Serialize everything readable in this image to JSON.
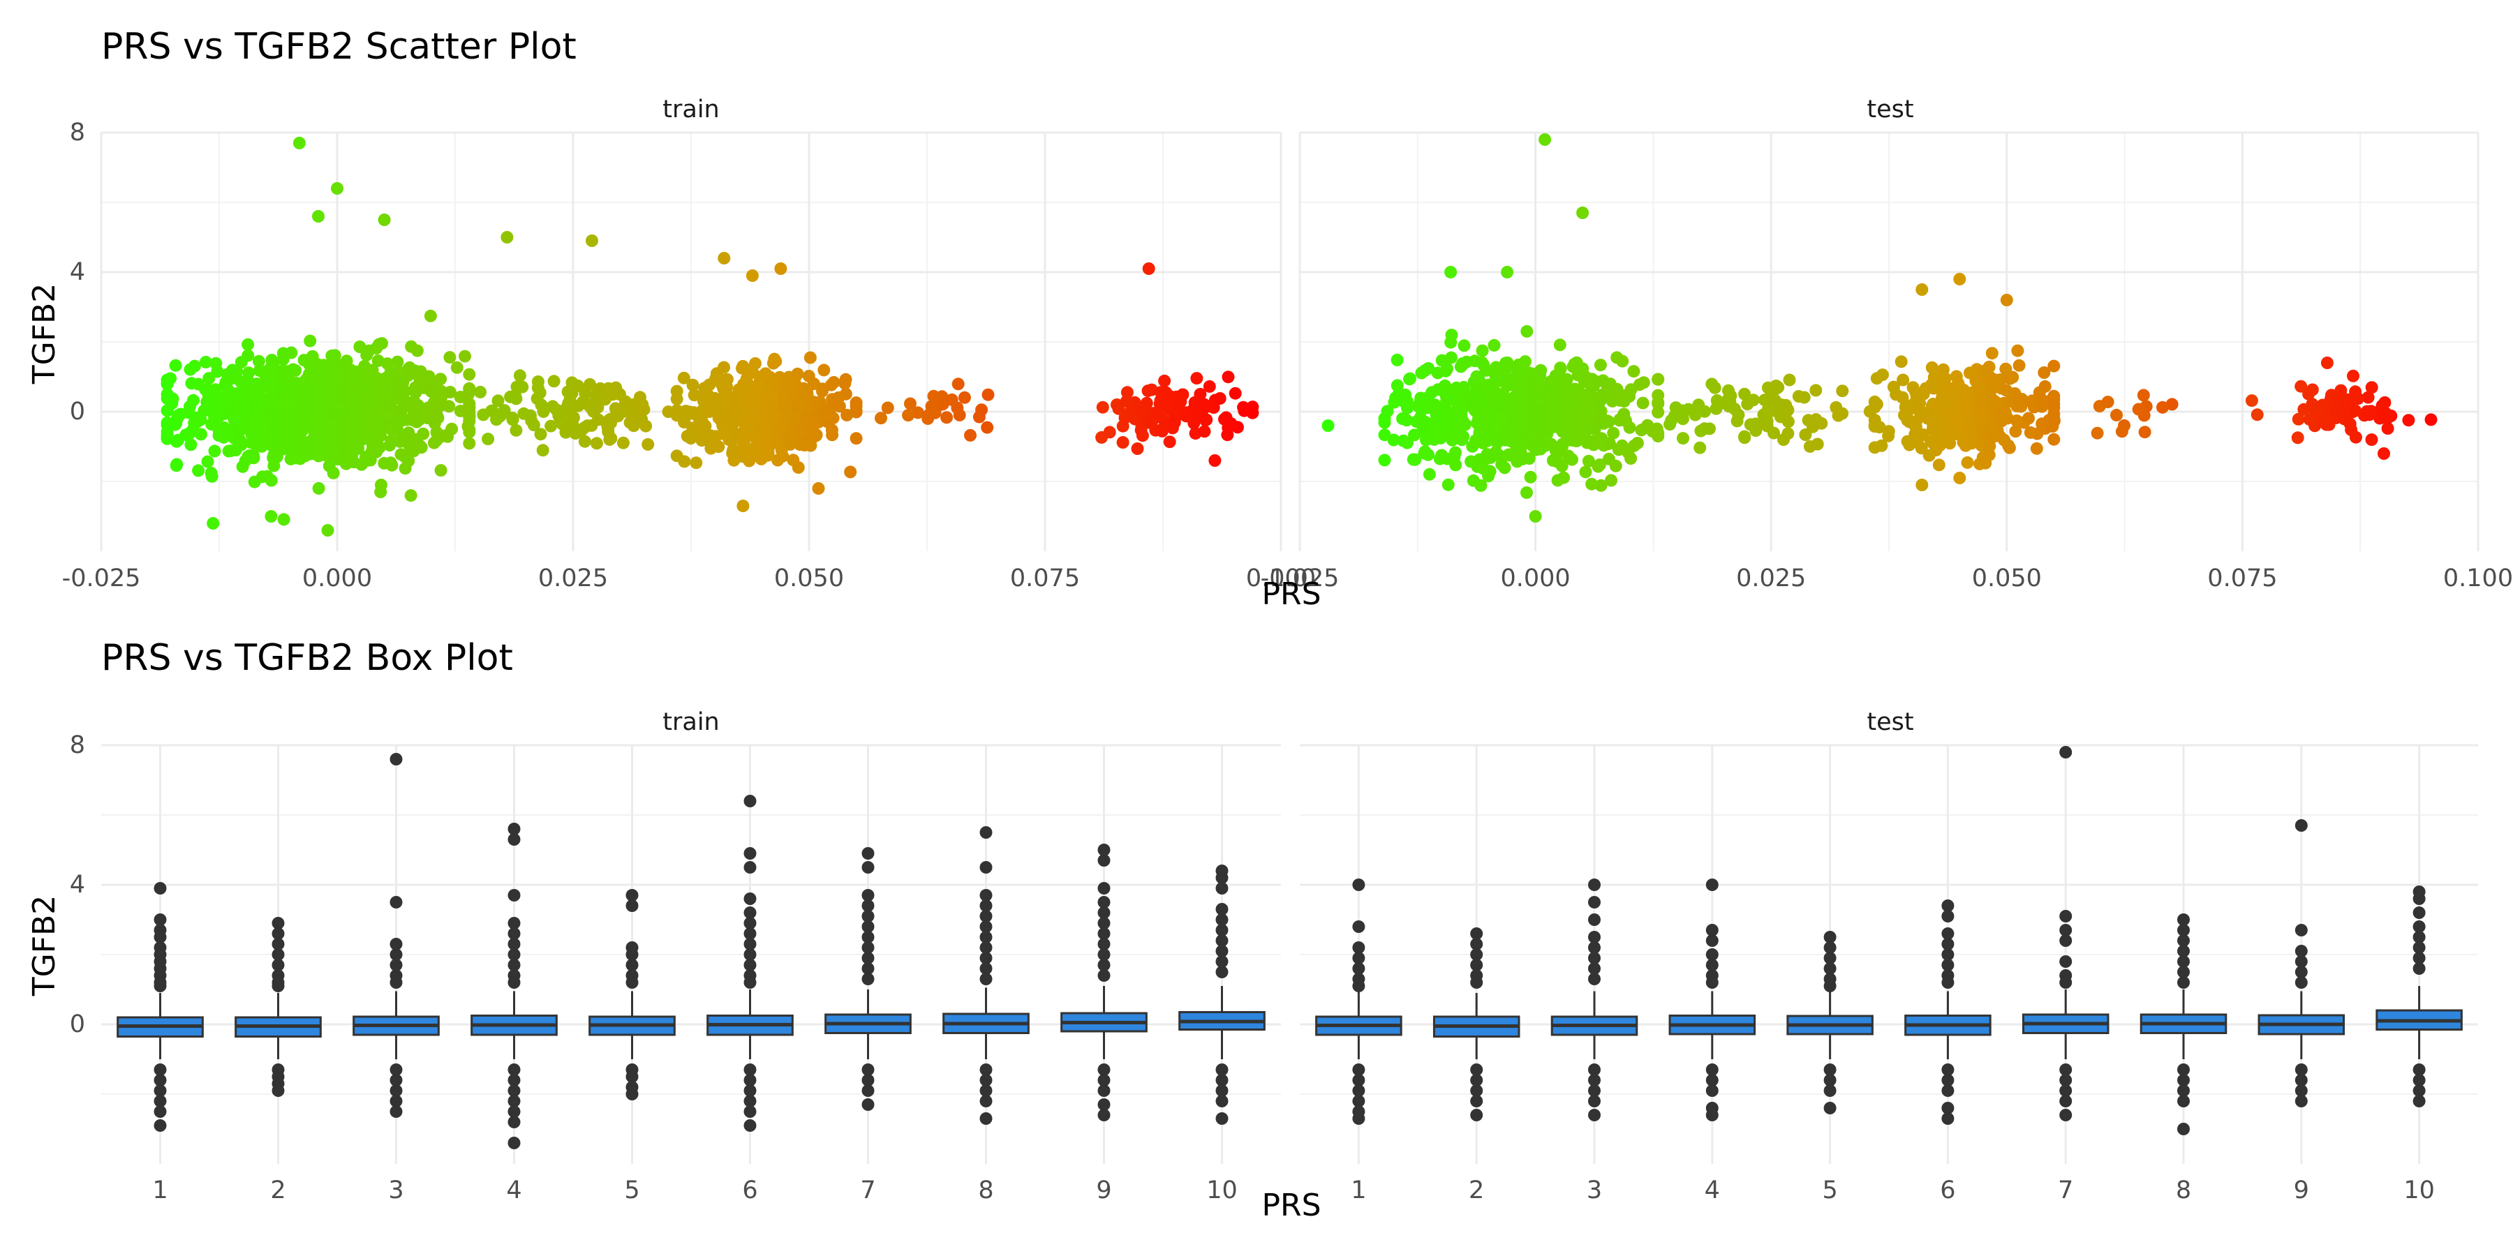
{
  "chart_data": [
    {
      "type": "scatter",
      "title": "PRS vs TGFB2 Scatter Plot",
      "xlabel": "PRS",
      "ylabel": "TGFB2",
      "xlim": [
        -0.025,
        0.1
      ],
      "ylim": [
        -4,
        8
      ],
      "x_ticks": [
        "-0.025",
        "0.000",
        "0.025",
        "0.050",
        "0.075",
        "0.100"
      ],
      "y_ticks": [
        "0",
        "4",
        "8"
      ],
      "y_tick_values": [
        0,
        4,
        8
      ],
      "grid": true,
      "legend": "none",
      "color_scale": {
        "low": "#33ff00",
        "mid": "#d49a00",
        "high": "#ff0000"
      },
      "facets": [
        {
          "label": "train",
          "clusters": [
            {
              "x_range": [
                -0.018,
                0.014
              ],
              "y_sd": 0.8,
              "n": 900
            },
            {
              "x_range": [
                0.014,
                0.037
              ],
              "y_sd": 0.5,
              "n": 120
            },
            {
              "x_range": [
                0.036,
                0.055
              ],
              "y_sd": 0.6,
              "n": 450
            },
            {
              "x_range": [
                0.055,
                0.072
              ],
              "y_sd": 0.3,
              "n": 25
            },
            {
              "x_range": [
                0.081,
                0.097
              ],
              "y_sd": 0.4,
              "n": 110
            }
          ],
          "notable_points": [
            {
              "x": -0.004,
              "y": 7.7
            },
            {
              "x": 0.0,
              "y": 6.4
            },
            {
              "x": -0.002,
              "y": 5.6
            },
            {
              "x": 0.005,
              "y": 5.5
            },
            {
              "x": 0.018,
              "y": 5.0
            },
            {
              "x": 0.027,
              "y": 4.9
            },
            {
              "x": 0.041,
              "y": 4.4
            },
            {
              "x": 0.044,
              "y": 3.9
            },
            {
              "x": 0.047,
              "y": 4.1
            },
            {
              "x": 0.086,
              "y": 4.1
            },
            {
              "x": -0.001,
              "y": -3.4
            },
            {
              "x": 0.043,
              "y": -2.7
            },
            {
              "x": 0.051,
              "y": -2.2
            },
            {
              "x": 0.093,
              "y": -1.4
            },
            {
              "x": -0.007,
              "y": -3.0
            }
          ]
        },
        {
          "label": "test",
          "clusters": [
            {
              "x_range": [
                -0.016,
                0.013
              ],
              "y_sd": 0.8,
              "n": 600
            },
            {
              "x_range": [
                0.012,
                0.036
              ],
              "y_sd": 0.5,
              "n": 80
            },
            {
              "x_range": [
                0.036,
                0.055
              ],
              "y_sd": 0.6,
              "n": 320
            },
            {
              "x_range": [
                0.055,
                0.072
              ],
              "y_sd": 0.3,
              "n": 14
            },
            {
              "x_range": [
                0.076,
                0.095
              ],
              "y_sd": 0.4,
              "n": 70
            }
          ],
          "notable_points": [
            {
              "x": 0.001,
              "y": 7.8
            },
            {
              "x": 0.005,
              "y": 5.7
            },
            {
              "x": -0.009,
              "y": 4.0
            },
            {
              "x": -0.003,
              "y": 4.0
            },
            {
              "x": 0.041,
              "y": 3.5
            },
            {
              "x": 0.045,
              "y": 3.8
            },
            {
              "x": 0.05,
              "y": 3.2
            },
            {
              "x": -0.022,
              "y": -0.4
            },
            {
              "x": 0.0,
              "y": -3.0
            },
            {
              "x": 0.041,
              "y": -2.1
            },
            {
              "x": 0.045,
              "y": -1.9
            },
            {
              "x": 0.09,
              "y": -1.2
            },
            {
              "x": 0.084,
              "y": 1.4
            }
          ]
        }
      ]
    },
    {
      "type": "box",
      "title": "PRS vs TGFB2 Box Plot",
      "xlabel": "PRS",
      "ylabel": "TGFB2",
      "ylim": [
        -4,
        8
      ],
      "y_ticks": [
        "0",
        "4",
        "8"
      ],
      "y_tick_values": [
        0,
        4,
        8
      ],
      "categories": [
        "1",
        "2",
        "3",
        "4",
        "5",
        "6",
        "7",
        "8",
        "9",
        "10"
      ],
      "grid": true,
      "box_fill": "#2e86de",
      "facets": [
        {
          "label": "train",
          "boxes": [
            {
              "q1": -0.35,
              "median": -0.05,
              "q3": 0.2,
              "whisker_low": -1.0,
              "whisker_high": 0.9,
              "outliers": [
                3.9,
                3.0,
                2.7,
                2.5,
                2.2,
                2.0,
                1.8,
                1.6,
                1.4,
                1.2,
                1.1,
                -1.3,
                -1.6,
                -1.9,
                -2.2,
                -2.5,
                -2.9
              ]
            },
            {
              "q1": -0.35,
              "median": -0.05,
              "q3": 0.2,
              "whisker_low": -1.0,
              "whisker_high": 0.9,
              "outliers": [
                2.9,
                2.6,
                2.3,
                2.0,
                1.7,
                1.4,
                1.2,
                1.1,
                -1.3,
                -1.5,
                -1.7,
                -1.9
              ]
            },
            {
              "q1": -0.3,
              "median": -0.03,
              "q3": 0.22,
              "whisker_low": -1.0,
              "whisker_high": 0.95,
              "outliers": [
                7.6,
                3.5,
                2.3,
                2.0,
                1.7,
                1.4,
                1.2,
                -1.3,
                -1.6,
                -1.9,
                -2.2,
                -2.5
              ]
            },
            {
              "q1": -0.3,
              "median": -0.02,
              "q3": 0.25,
              "whisker_low": -1.0,
              "whisker_high": 0.95,
              "outliers": [
                5.6,
                5.3,
                3.7,
                2.9,
                2.6,
                2.3,
                2.0,
                1.7,
                1.4,
                1.2,
                -1.3,
                -1.6,
                -1.9,
                -2.2,
                -2.5,
                -2.8,
                -3.4
              ]
            },
            {
              "q1": -0.3,
              "median": -0.02,
              "q3": 0.22,
              "whisker_low": -1.0,
              "whisker_high": 0.95,
              "outliers": [
                3.7,
                3.4,
                2.2,
                2.0,
                1.7,
                1.4,
                1.2,
                -1.3,
                -1.5,
                -1.8,
                -2.0
              ]
            },
            {
              "q1": -0.3,
              "median": -0.01,
              "q3": 0.25,
              "whisker_low": -1.0,
              "whisker_high": 1.0,
              "outliers": [
                6.4,
                4.9,
                4.5,
                3.6,
                3.2,
                2.9,
                2.6,
                2.3,
                2.0,
                1.7,
                1.4,
                1.2,
                -1.3,
                -1.6,
                -1.9,
                -2.2,
                -2.5,
                -2.9
              ]
            },
            {
              "q1": -0.25,
              "median": 0.02,
              "q3": 0.28,
              "whisker_low": -1.0,
              "whisker_high": 1.0,
              "outliers": [
                4.9,
                4.5,
                3.7,
                3.4,
                3.1,
                2.8,
                2.5,
                2.2,
                1.9,
                1.6,
                1.3,
                -1.3,
                -1.6,
                -1.9,
                -2.3
              ]
            },
            {
              "q1": -0.25,
              "median": 0.02,
              "q3": 0.3,
              "whisker_low": -1.0,
              "whisker_high": 1.05,
              "outliers": [
                5.5,
                4.5,
                3.7,
                3.4,
                3.1,
                2.8,
                2.5,
                2.2,
                1.9,
                1.6,
                1.3,
                -1.3,
                -1.6,
                -1.9,
                -2.2,
                -2.7
              ]
            },
            {
              "q1": -0.2,
              "median": 0.05,
              "q3": 0.32,
              "whisker_low": -1.0,
              "whisker_high": 1.1,
              "outliers": [
                5.0,
                4.7,
                3.9,
                3.5,
                3.2,
                2.9,
                2.6,
                2.3,
                2.0,
                1.7,
                1.4,
                -1.3,
                -1.6,
                -1.9,
                -2.3,
                -2.6
              ]
            },
            {
              "q1": -0.15,
              "median": 0.08,
              "q3": 0.35,
              "whisker_low": -1.0,
              "whisker_high": 1.1,
              "outliers": [
                4.4,
                4.2,
                3.9,
                3.3,
                3.0,
                2.7,
                2.4,
                2.1,
                1.8,
                1.5,
                -1.3,
                -1.6,
                -1.9,
                -2.2,
                -2.7
              ]
            }
          ]
        },
        {
          "label": "test",
          "boxes": [
            {
              "q1": -0.3,
              "median": -0.03,
              "q3": 0.22,
              "whisker_low": -1.0,
              "whisker_high": 0.95,
              "outliers": [
                4.0,
                2.8,
                2.2,
                1.9,
                1.6,
                1.3,
                1.1,
                -1.3,
                -1.6,
                -1.9,
                -2.2,
                -2.5,
                -2.7
              ]
            },
            {
              "q1": -0.35,
              "median": -0.05,
              "q3": 0.22,
              "whisker_low": -1.0,
              "whisker_high": 0.9,
              "outliers": [
                2.6,
                2.3,
                2.0,
                1.7,
                1.4,
                1.2,
                -1.3,
                -1.6,
                -1.9,
                -2.2,
                -2.6
              ]
            },
            {
              "q1": -0.3,
              "median": -0.03,
              "q3": 0.22,
              "whisker_low": -1.0,
              "whisker_high": 0.95,
              "outliers": [
                4.0,
                3.5,
                3.0,
                2.5,
                2.2,
                1.9,
                1.6,
                1.3,
                -1.3,
                -1.6,
                -1.9,
                -2.2,
                -2.6
              ]
            },
            {
              "q1": -0.28,
              "median": -0.02,
              "q3": 0.25,
              "whisker_low": -1.0,
              "whisker_high": 0.95,
              "outliers": [
                4.0,
                2.7,
                2.4,
                2.0,
                1.7,
                1.4,
                1.2,
                -1.3,
                -1.6,
                -1.9,
                -2.4,
                -2.6
              ]
            },
            {
              "q1": -0.28,
              "median": -0.02,
              "q3": 0.24,
              "whisker_low": -1.0,
              "whisker_high": 0.95,
              "outliers": [
                2.5,
                2.2,
                1.9,
                1.6,
                1.3,
                1.1,
                -1.3,
                -1.6,
                -1.9,
                -2.4
              ]
            },
            {
              "q1": -0.3,
              "median": -0.02,
              "q3": 0.25,
              "whisker_low": -1.0,
              "whisker_high": 0.95,
              "outliers": [
                3.4,
                3.1,
                2.6,
                2.3,
                2.0,
                1.7,
                1.4,
                1.2,
                -1.3,
                -1.6,
                -1.9,
                -2.4,
                -2.7
              ]
            },
            {
              "q1": -0.25,
              "median": 0.02,
              "q3": 0.28,
              "whisker_low": -1.0,
              "whisker_high": 1.0,
              "outliers": [
                7.8,
                3.1,
                2.7,
                2.4,
                1.8,
                1.4,
                1.2,
                -1.3,
                -1.6,
                -1.9,
                -2.2,
                -2.6
              ]
            },
            {
              "q1": -0.25,
              "median": 0.02,
              "q3": 0.28,
              "whisker_low": -1.0,
              "whisker_high": 1.0,
              "outliers": [
                3.0,
                2.7,
                2.4,
                2.1,
                1.8,
                1.5,
                1.2,
                -1.3,
                -1.6,
                -1.9,
                -2.2,
                -3.0
              ]
            },
            {
              "q1": -0.28,
              "median": 0.0,
              "q3": 0.26,
              "whisker_low": -1.0,
              "whisker_high": 0.95,
              "outliers": [
                5.7,
                2.7,
                2.1,
                1.8,
                1.5,
                1.2,
                -1.3,
                -1.6,
                -1.9,
                -2.2
              ]
            },
            {
              "q1": -0.15,
              "median": 0.1,
              "q3": 0.4,
              "whisker_low": -1.0,
              "whisker_high": 1.1,
              "outliers": [
                3.8,
                3.6,
                3.2,
                2.8,
                2.5,
                2.2,
                1.9,
                1.6,
                -1.3,
                -1.6,
                -1.9,
                -2.2
              ]
            }
          ]
        }
      ]
    }
  ]
}
